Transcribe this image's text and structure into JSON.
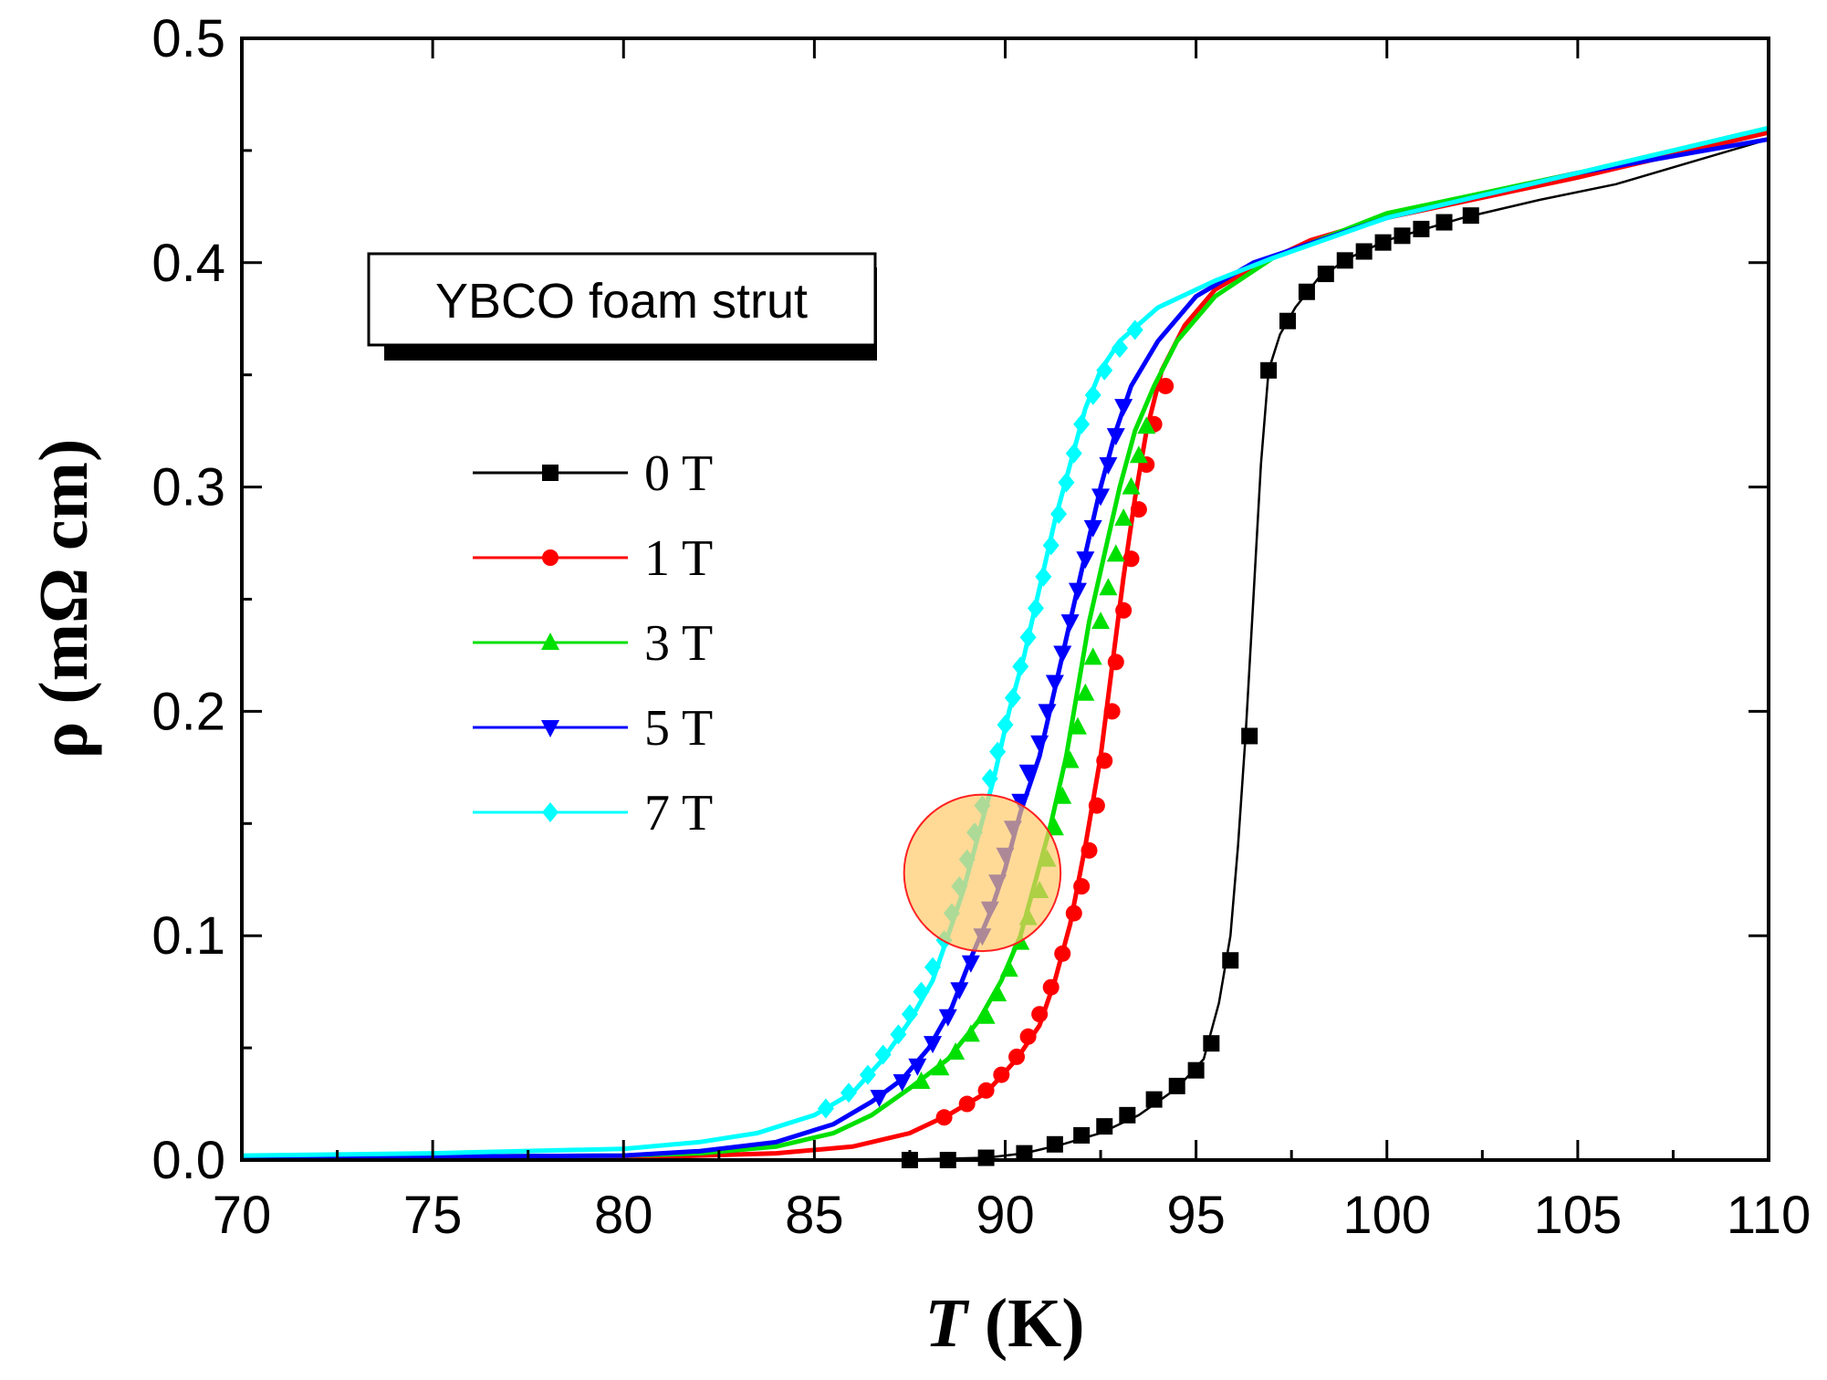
{
  "chart_data": {
    "type": "scatter",
    "annotation": "YBCO foam strut",
    "xlabel_italic": "T",
    "xlabel_unit": " (K)",
    "ylabel": "ρ (mΩ cm)",
    "xlim": [
      70,
      110
    ],
    "ylim": [
      0,
      0.5
    ],
    "xticks": [
      "70",
      "75",
      "80",
      "85",
      "90",
      "95",
      "100",
      "105",
      "110"
    ],
    "yticks": [
      "0.0",
      "0.1",
      "0.2",
      "0.3",
      "0.4",
      "0.5"
    ],
    "highlight": {
      "x": 89.4,
      "y": 0.128,
      "radius_x_units": 2.05
    },
    "series": [
      {
        "name": "0 T",
        "color": "#000000",
        "marker": "square",
        "curve": [
          [
            70,
            0.001
          ],
          [
            80,
            0.0
          ],
          [
            87,
            0.0
          ],
          [
            89.5,
            0.001
          ],
          [
            90.5,
            0.003
          ],
          [
            91.5,
            0.007
          ],
          [
            92.5,
            0.012
          ],
          [
            93.5,
            0.02
          ],
          [
            94.5,
            0.032
          ],
          [
            95.2,
            0.045
          ],
          [
            95.6,
            0.07
          ],
          [
            95.9,
            0.1
          ],
          [
            96.1,
            0.14
          ],
          [
            96.3,
            0.19
          ],
          [
            96.5,
            0.25
          ],
          [
            96.7,
            0.31
          ],
          [
            96.9,
            0.352
          ],
          [
            97.2,
            0.368
          ],
          [
            97.6,
            0.38
          ],
          [
            98.2,
            0.393
          ],
          [
            99,
            0.402
          ],
          [
            100,
            0.41
          ],
          [
            102,
            0.42
          ],
          [
            104,
            0.428
          ],
          [
            106,
            0.435
          ],
          [
            108,
            0.445
          ],
          [
            110,
            0.455
          ]
        ],
        "markers": [
          [
            87.5,
            0.0
          ],
          [
            88.5,
            0.0
          ],
          [
            89.5,
            0.001
          ],
          [
            90.5,
            0.003
          ],
          [
            91.3,
            0.007
          ],
          [
            92,
            0.011
          ],
          [
            92.6,
            0.015
          ],
          [
            93.2,
            0.02
          ],
          [
            93.9,
            0.027
          ],
          [
            94.5,
            0.033
          ],
          [
            95,
            0.04
          ],
          [
            95.4,
            0.052
          ],
          [
            95.9,
            0.089
          ],
          [
            96.4,
            0.189
          ],
          [
            96.9,
            0.352
          ],
          [
            97.4,
            0.374
          ],
          [
            97.9,
            0.387
          ],
          [
            98.4,
            0.395
          ],
          [
            98.9,
            0.401
          ],
          [
            99.4,
            0.405
          ],
          [
            99.9,
            0.409
          ],
          [
            100.4,
            0.412
          ],
          [
            100.9,
            0.415
          ],
          [
            101.5,
            0.418
          ],
          [
            102.2,
            0.421
          ]
        ]
      },
      {
        "name": "1 T",
        "color": "#ff0000",
        "marker": "circle",
        "curve": [
          [
            70,
            0.001
          ],
          [
            80,
            0.001
          ],
          [
            82,
            0.002
          ],
          [
            84,
            0.003
          ],
          [
            86,
            0.006
          ],
          [
            87.5,
            0.012
          ],
          [
            88.5,
            0.02
          ],
          [
            89.5,
            0.03
          ],
          [
            90.3,
            0.045
          ],
          [
            90.9,
            0.06
          ],
          [
            91.3,
            0.08
          ],
          [
            91.7,
            0.105
          ],
          [
            92.1,
            0.14
          ],
          [
            92.5,
            0.18
          ],
          [
            92.8,
            0.22
          ],
          [
            93.1,
            0.26
          ],
          [
            93.4,
            0.295
          ],
          [
            93.7,
            0.325
          ],
          [
            94.1,
            0.352
          ],
          [
            94.7,
            0.372
          ],
          [
            95.5,
            0.388
          ],
          [
            96.5,
            0.398
          ],
          [
            98,
            0.41
          ],
          [
            100,
            0.42
          ],
          [
            105,
            0.438
          ],
          [
            110,
            0.458
          ]
        ],
        "markers": [
          [
            88.4,
            0.019
          ],
          [
            89,
            0.025
          ],
          [
            89.5,
            0.031
          ],
          [
            89.9,
            0.038
          ],
          [
            90.3,
            0.046
          ],
          [
            90.6,
            0.055
          ],
          [
            90.9,
            0.065
          ],
          [
            91.2,
            0.077
          ],
          [
            91.5,
            0.092
          ],
          [
            91.8,
            0.11
          ],
          [
            92,
            0.122
          ],
          [
            92.2,
            0.138
          ],
          [
            92.4,
            0.158
          ],
          [
            92.6,
            0.178
          ],
          [
            92.8,
            0.2
          ],
          [
            92.9,
            0.222
          ],
          [
            93.1,
            0.245
          ],
          [
            93.3,
            0.268
          ],
          [
            93.5,
            0.29
          ],
          [
            93.7,
            0.31
          ],
          [
            93.9,
            0.328
          ],
          [
            94.2,
            0.345
          ]
        ]
      },
      {
        "name": "3 T",
        "color": "#00e000",
        "marker": "triangle-up",
        "curve": [
          [
            70,
            0.001
          ],
          [
            80,
            0.002
          ],
          [
            82,
            0.003
          ],
          [
            84,
            0.006
          ],
          [
            85.5,
            0.012
          ],
          [
            86.5,
            0.02
          ],
          [
            87.5,
            0.032
          ],
          [
            88.5,
            0.045
          ],
          [
            89.3,
            0.062
          ],
          [
            89.9,
            0.08
          ],
          [
            90.4,
            0.1
          ],
          [
            90.8,
            0.125
          ],
          [
            91.2,
            0.15
          ],
          [
            91.6,
            0.18
          ],
          [
            91.9,
            0.21
          ],
          [
            92.2,
            0.24
          ],
          [
            92.6,
            0.27
          ],
          [
            93,
            0.3
          ],
          [
            93.4,
            0.325
          ],
          [
            93.9,
            0.345
          ],
          [
            94.5,
            0.365
          ],
          [
            95.5,
            0.385
          ],
          [
            97,
            0.402
          ],
          [
            100,
            0.422
          ],
          [
            105,
            0.44
          ],
          [
            110,
            0.46
          ]
        ],
        "markers": [
          [
            87.8,
            0.035
          ],
          [
            88.3,
            0.041
          ],
          [
            88.7,
            0.048
          ],
          [
            89.1,
            0.056
          ],
          [
            89.5,
            0.064
          ],
          [
            89.8,
            0.074
          ],
          [
            90.1,
            0.085
          ],
          [
            90.4,
            0.097
          ],
          [
            90.6,
            0.108
          ],
          [
            90.9,
            0.12
          ],
          [
            91.1,
            0.134
          ],
          [
            91.3,
            0.148
          ],
          [
            91.5,
            0.162
          ],
          [
            91.7,
            0.178
          ],
          [
            91.9,
            0.193
          ],
          [
            92.1,
            0.208
          ],
          [
            92.3,
            0.224
          ],
          [
            92.5,
            0.24
          ],
          [
            92.7,
            0.255
          ],
          [
            92.9,
            0.27
          ],
          [
            93.1,
            0.286
          ],
          [
            93.3,
            0.3
          ],
          [
            93.5,
            0.314
          ],
          [
            93.7,
            0.327
          ]
        ]
      },
      {
        "name": "5 T",
        "color": "#0000ff",
        "marker": "triangle-down",
        "curve": [
          [
            70,
            0.001
          ],
          [
            80,
            0.002
          ],
          [
            82,
            0.004
          ],
          [
            84,
            0.008
          ],
          [
            85.5,
            0.016
          ],
          [
            86.5,
            0.026
          ],
          [
            87.3,
            0.036
          ],
          [
            88,
            0.05
          ],
          [
            88.6,
            0.068
          ],
          [
            89.1,
            0.09
          ],
          [
            89.6,
            0.11
          ],
          [
            90,
            0.13
          ],
          [
            90.4,
            0.155
          ],
          [
            90.9,
            0.18
          ],
          [
            91.3,
            0.21
          ],
          [
            91.7,
            0.24
          ],
          [
            92.1,
            0.27
          ],
          [
            92.5,
            0.3
          ],
          [
            92.9,
            0.325
          ],
          [
            93.3,
            0.345
          ],
          [
            94,
            0.365
          ],
          [
            95,
            0.385
          ],
          [
            96.5,
            0.4
          ],
          [
            100,
            0.42
          ],
          [
            105,
            0.44
          ],
          [
            110,
            0.455
          ]
        ],
        "markers": [
          [
            86.7,
            0.028
          ],
          [
            87.3,
            0.035
          ],
          [
            87.7,
            0.042
          ],
          [
            88.1,
            0.052
          ],
          [
            88.5,
            0.064
          ],
          [
            88.8,
            0.076
          ],
          [
            89.1,
            0.088
          ],
          [
            89.4,
            0.1
          ],
          [
            89.6,
            0.112
          ],
          [
            89.8,
            0.124
          ],
          [
            90,
            0.136
          ],
          [
            90.2,
            0.148
          ],
          [
            90.4,
            0.16
          ],
          [
            90.6,
            0.173
          ],
          [
            90.9,
            0.186
          ],
          [
            91.1,
            0.2
          ],
          [
            91.3,
            0.213
          ],
          [
            91.5,
            0.226
          ],
          [
            91.7,
            0.24
          ],
          [
            91.9,
            0.254
          ],
          [
            92.1,
            0.268
          ],
          [
            92.3,
            0.282
          ],
          [
            92.5,
            0.296
          ],
          [
            92.7,
            0.31
          ],
          [
            92.9,
            0.323
          ],
          [
            93.1,
            0.336
          ]
        ]
      },
      {
        "name": "7 T",
        "color": "#00ffff",
        "marker": "diamond",
        "curve": [
          [
            70,
            0.002
          ],
          [
            75,
            0.003
          ],
          [
            80,
            0.005
          ],
          [
            82,
            0.008
          ],
          [
            83.5,
            0.012
          ],
          [
            85,
            0.02
          ],
          [
            86,
            0.03
          ],
          [
            86.8,
            0.045
          ],
          [
            87.5,
            0.062
          ],
          [
            88.1,
            0.08
          ],
          [
            88.5,
            0.1
          ],
          [
            88.9,
            0.12
          ],
          [
            89.3,
            0.145
          ],
          [
            89.7,
            0.17
          ],
          [
            90.1,
            0.2
          ],
          [
            90.5,
            0.225
          ],
          [
            90.9,
            0.255
          ],
          [
            91.3,
            0.285
          ],
          [
            91.7,
            0.31
          ],
          [
            92.1,
            0.335
          ],
          [
            92.5,
            0.352
          ],
          [
            93,
            0.365
          ],
          [
            94,
            0.38
          ],
          [
            95.5,
            0.392
          ],
          [
            97,
            0.402
          ],
          [
            100,
            0.42
          ],
          [
            105,
            0.44
          ],
          [
            110,
            0.46
          ]
        ],
        "markers": [
          [
            85.3,
            0.023
          ],
          [
            85.9,
            0.03
          ],
          [
            86.4,
            0.038
          ],
          [
            86.8,
            0.047
          ],
          [
            87.2,
            0.056
          ],
          [
            87.5,
            0.065
          ],
          [
            87.8,
            0.075
          ],
          [
            88.1,
            0.086
          ],
          [
            88.4,
            0.098
          ],
          [
            88.6,
            0.11
          ],
          [
            88.8,
            0.122
          ],
          [
            89,
            0.134
          ],
          [
            89.2,
            0.146
          ],
          [
            89.4,
            0.158
          ],
          [
            89.6,
            0.17
          ],
          [
            89.8,
            0.182
          ],
          [
            90,
            0.194
          ],
          [
            90.2,
            0.206
          ],
          [
            90.4,
            0.22
          ],
          [
            90.6,
            0.233
          ],
          [
            90.8,
            0.246
          ],
          [
            91,
            0.26
          ],
          [
            91.2,
            0.274
          ],
          [
            91.4,
            0.288
          ],
          [
            91.6,
            0.302
          ],
          [
            91.8,
            0.315
          ],
          [
            92,
            0.328
          ],
          [
            92.3,
            0.341
          ],
          [
            92.6,
            0.352
          ],
          [
            93,
            0.362
          ],
          [
            93.4,
            0.37
          ]
        ]
      }
    ]
  }
}
